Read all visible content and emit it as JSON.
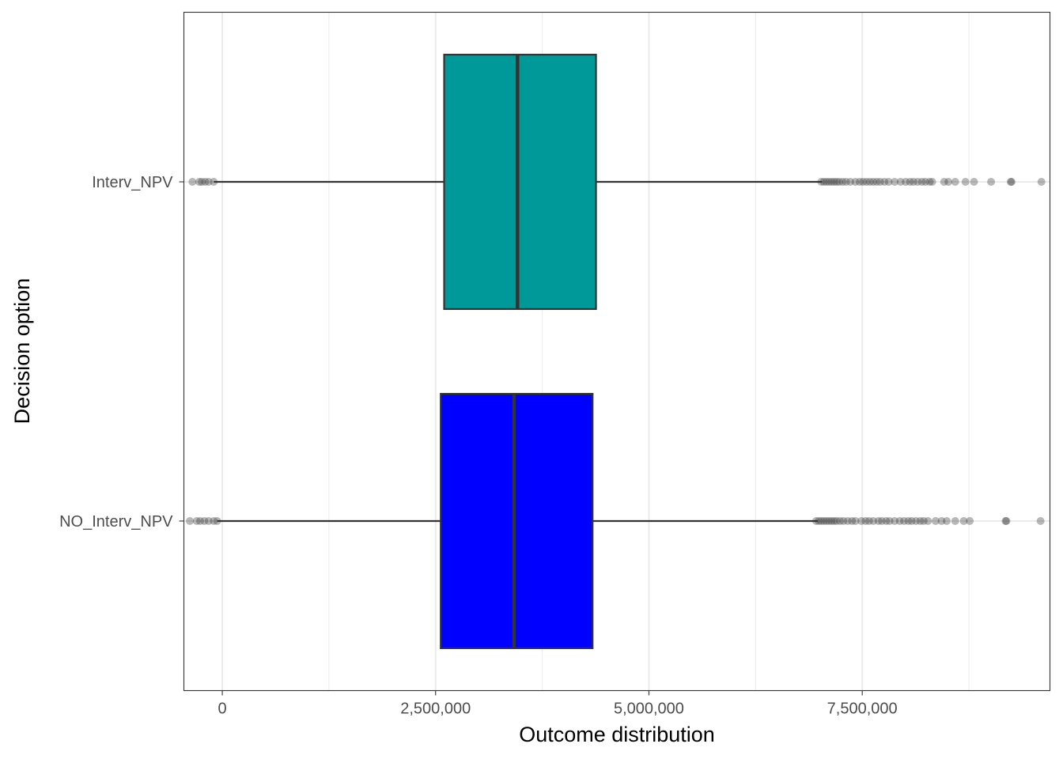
{
  "chart_data": {
    "type": "boxplot",
    "orientation": "horizontal",
    "xlabel": "Outcome distribution",
    "ylabel": "Decision option",
    "xlim": [
      -450000,
      9700000
    ],
    "x_ticks": [
      0,
      2500000,
      5000000,
      7500000
    ],
    "x_tick_labels": [
      "0",
      "2,500,000",
      "5,000,000",
      "7,500,000"
    ],
    "grid": true,
    "theme": "bw",
    "categories": [
      "NO_Interv_NPV",
      "Interv_NPV"
    ],
    "series": [
      {
        "category": "Interv_NPV",
        "fill": "#009999",
        "whisker_low": -100000,
        "q1": 2600000,
        "median": 3460000,
        "q3": 4380000,
        "whisker_high": 7030000,
        "outliers": [
          -350000,
          -270000,
          -240000,
          -200000,
          -160000,
          -100000,
          7020000,
          7050000,
          7080000,
          7110000,
          7140000,
          7170000,
          7200000,
          7230000,
          7270000,
          7310000,
          7360000,
          7420000,
          7470000,
          7510000,
          7550000,
          7590000,
          7630000,
          7670000,
          7710000,
          7760000,
          7810000,
          7880000,
          7950000,
          8010000,
          8060000,
          8100000,
          8150000,
          8200000,
          8240000,
          8290000,
          8320000,
          8460000,
          8510000,
          8590000,
          8710000,
          8810000,
          9010000,
          9240000,
          9250000,
          9600000
        ]
      },
      {
        "category": "NO_Interv_NPV",
        "fill": "#0000ff",
        "whisker_low": -60000,
        "q1": 2560000,
        "median": 3420000,
        "q3": 4340000,
        "whisker_high": 6980000,
        "outliers": [
          -380000,
          -300000,
          -260000,
          -210000,
          -160000,
          -100000,
          -60000,
          6960000,
          6990000,
          7020000,
          7050000,
          7080000,
          7110000,
          7140000,
          7170000,
          7200000,
          7240000,
          7280000,
          7330000,
          7380000,
          7420000,
          7490000,
          7540000,
          7580000,
          7630000,
          7690000,
          7730000,
          7780000,
          7820000,
          7880000,
          7940000,
          7990000,
          8040000,
          8080000,
          8130000,
          8180000,
          8220000,
          8270000,
          8360000,
          8430000,
          8490000,
          8590000,
          8690000,
          8760000,
          9180000,
          9190000,
          9590000
        ]
      }
    ]
  }
}
